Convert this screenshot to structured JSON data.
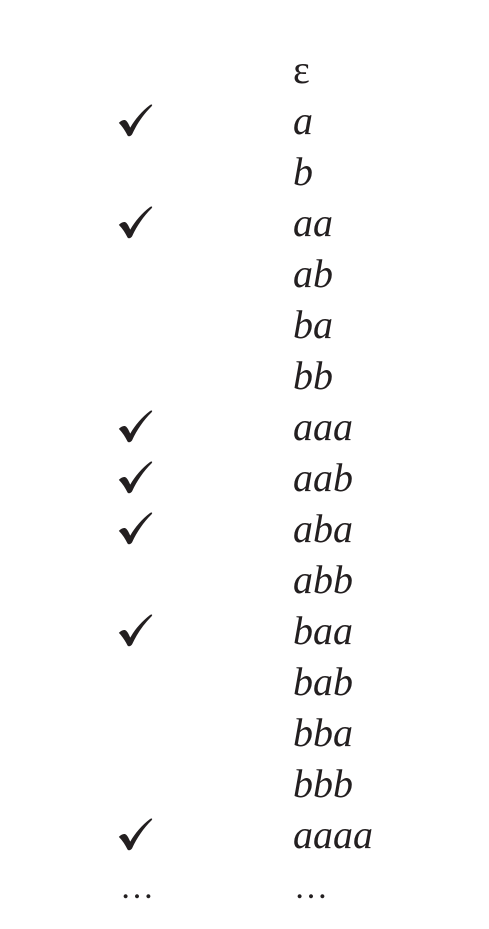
{
  "rows": [
    {
      "word": "ε",
      "checked": false
    },
    {
      "word": "a",
      "checked": true
    },
    {
      "word": "b",
      "checked": false
    },
    {
      "word": "aa",
      "checked": true
    },
    {
      "word": "ab",
      "checked": false
    },
    {
      "word": "ba",
      "checked": false
    },
    {
      "word": "bb",
      "checked": false
    },
    {
      "word": "aaa",
      "checked": true
    },
    {
      "word": "aab",
      "checked": true
    },
    {
      "word": "aba",
      "checked": true
    },
    {
      "word": "abb",
      "checked": false
    },
    {
      "word": "baa",
      "checked": true
    },
    {
      "word": "bab",
      "checked": false
    },
    {
      "word": "bba",
      "checked": false
    },
    {
      "word": "bbb",
      "checked": false
    },
    {
      "word": "aaaa",
      "checked": true
    }
  ],
  "continuation": {
    "left": "…",
    "right": "…"
  },
  "colors": {
    "ink": "#231f20",
    "background": "#ffffff"
  },
  "icons": {
    "check": "check-mark-icon"
  }
}
